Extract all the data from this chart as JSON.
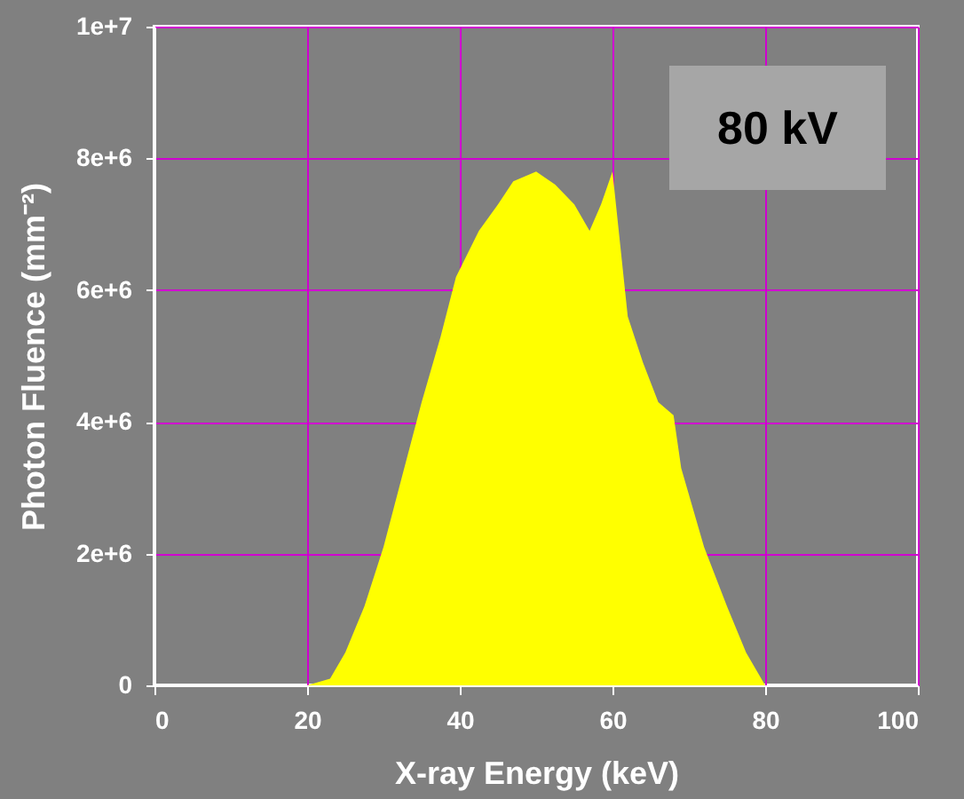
{
  "chart_data": {
    "type": "area",
    "xlabel": "X-ray Energy (keV)",
    "ylabel": "Photon Fluence (mm⁻²)",
    "annotations": [
      "80 kV"
    ],
    "x": [
      0,
      20,
      23,
      25,
      27.5,
      30,
      32.5,
      35,
      37.5,
      39.5,
      42.5,
      45,
      47,
      50,
      52.5,
      55,
      57,
      58.5,
      60,
      61,
      62,
      64,
      66,
      68,
      69,
      72,
      75,
      77.5,
      80,
      85
    ],
    "series": [
      {
        "color": "#ffff00",
        "values": [
          0,
          0,
          100000,
          500000,
          1200000,
          2100000,
          3200000,
          4300000,
          5300000,
          6200000,
          6900000,
          7300000,
          7650000,
          7800000,
          7600000,
          7300000,
          6900000,
          7300000,
          7800000,
          6700000,
          5600000,
          4900000,
          4300000,
          4100000,
          3300000,
          2100000,
          1200000,
          500000,
          0,
          0
        ]
      }
    ],
    "xlim": [
      0,
      100
    ],
    "xticks": [
      0,
      20,
      40,
      60,
      80,
      100
    ],
    "ylim": [
      0,
      10000000
    ],
    "yticks": [
      {
        "value": 0,
        "label": "0"
      },
      {
        "value": 2000000,
        "label": "2e+6"
      },
      {
        "value": 4000000,
        "label": "4e+6"
      },
      {
        "value": 6000000,
        "label": "6e+6"
      },
      {
        "value": 8000000,
        "label": "8e+6"
      },
      {
        "value": 10000000,
        "label": "1e+7"
      }
    ],
    "grid": true
  }
}
